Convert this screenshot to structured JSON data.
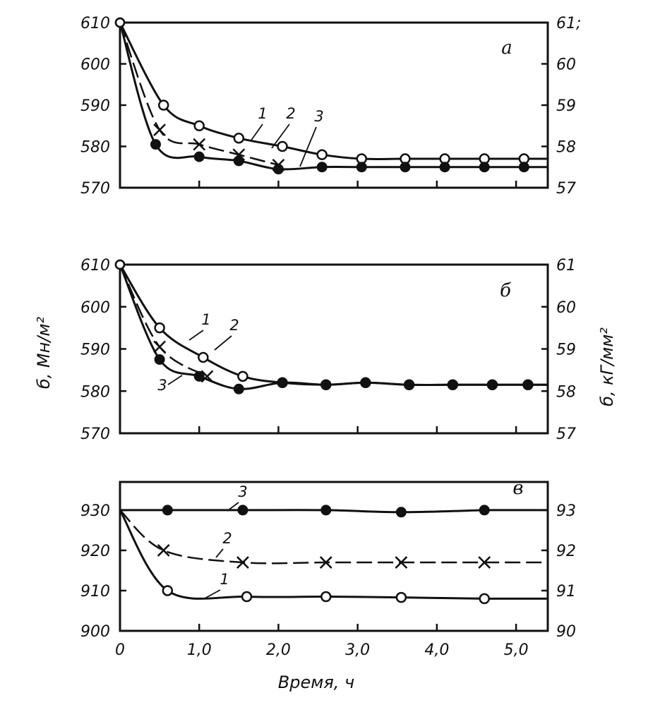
{
  "chart_data": [
    {
      "type": "line",
      "panel_label": "а",
      "x_ticks": [
        "",
        "",
        "",
        "",
        "",
        ""
      ],
      "xlim": [
        0,
        5.4
      ],
      "ylim": [
        570,
        610
      ],
      "y_ticks": [
        570,
        580,
        590,
        600,
        610
      ],
      "y2_ticks": [
        "57",
        "58",
        "59",
        "60",
        "61;"
      ],
      "series": [
        {
          "name": "1",
          "marker": "open-circle",
          "dash": "solid",
          "x": [
            0,
            0.55,
            1.0,
            1.5,
            2.05,
            2.55,
            3.05,
            3.6,
            4.1,
            4.6,
            5.1
          ],
          "y": [
            610,
            590,
            585,
            582,
            580,
            578,
            577,
            577,
            577,
            577,
            577
          ]
        },
        {
          "name": "2",
          "marker": "cross",
          "dash": "dashed",
          "x": [
            0,
            0.5,
            1.0,
            1.5,
            2.0
          ],
          "y": [
            610,
            584,
            580.5,
            578,
            575.5
          ]
        },
        {
          "name": "3",
          "marker": "filled-circle",
          "dash": "solid",
          "x": [
            0,
            0.45,
            1.0,
            1.5,
            2.0,
            2.55,
            3.05,
            3.6,
            4.1,
            4.6,
            5.1
          ],
          "y": [
            610,
            580.5,
            577.5,
            576.5,
            574.5,
            575,
            575,
            575,
            575,
            575,
            575
          ]
        }
      ],
      "curve_labels": [
        "1",
        "2",
        "3"
      ]
    },
    {
      "type": "line",
      "panel_label": "б",
      "x_ticks": [
        "",
        "",
        "",
        "",
        "",
        ""
      ],
      "xlim": [
        0,
        5.4
      ],
      "ylim": [
        570,
        610
      ],
      "y_ticks": [
        570,
        580,
        590,
        600,
        610
      ],
      "y2_ticks": [
        "57",
        "58",
        "59",
        "60",
        "61"
      ],
      "series": [
        {
          "name": "1",
          "marker": "open-circle",
          "dash": "solid",
          "x": [
            0,
            0.5,
            1.05,
            1.55,
            2.05,
            2.6,
            3.1,
            3.65,
            4.2,
            4.7,
            5.15
          ],
          "y": [
            610,
            595,
            588,
            583.5,
            582,
            581.5,
            582,
            581.5,
            581.5,
            581.5,
            581.5
          ]
        },
        {
          "name": "2",
          "marker": "cross",
          "dash": "dashed",
          "x": [
            0,
            0.5,
            1.1
          ],
          "y": [
            610,
            590.5,
            583.5
          ]
        },
        {
          "name": "3",
          "marker": "filled-circle",
          "dash": "solid",
          "x": [
            0,
            0.5,
            1.0,
            1.5,
            2.05,
            2.6,
            3.1,
            3.65,
            4.2,
            4.7,
            5.15
          ],
          "y": [
            610,
            587.5,
            583.5,
            580.5,
            582,
            581.5,
            582,
            581.5,
            581.5,
            581.5,
            581.5
          ]
        }
      ],
      "curve_labels": [
        "1",
        "2",
        "3"
      ],
      "ylabel": "б, Мн/м²",
      "y2label": "б, кГ/мм²"
    },
    {
      "type": "line",
      "panel_label": "в",
      "x_ticks": [
        "0",
        "1,0",
        "2,0",
        "3,0",
        "4,0",
        "5,0"
      ],
      "xlim": [
        0,
        5.4
      ],
      "ylim": [
        900,
        937
      ],
      "y_ticks": [
        900,
        910,
        920,
        930
      ],
      "y2_ticks": [
        "90",
        "91",
        "92",
        "93"
      ],
      "series": [
        {
          "name": "3",
          "marker": "filled-circle",
          "dash": "solid",
          "x": [
            0,
            0.6,
            1.55,
            2.6,
            3.55,
            4.6
          ],
          "y": [
            930,
            930,
            930,
            930,
            929.5,
            930
          ]
        },
        {
          "name": "2",
          "marker": "cross",
          "dash": "dashed",
          "x": [
            0,
            0.55,
            1.55,
            2.6,
            3.55,
            4.6
          ],
          "y": [
            930,
            920,
            917,
            917,
            917,
            917
          ]
        },
        {
          "name": "1",
          "marker": "open-circle",
          "dash": "solid",
          "x": [
            0,
            0.6,
            1.6,
            2.6,
            3.55,
            4.6
          ],
          "y": [
            930,
            910,
            908.5,
            908.5,
            908.3,
            908
          ]
        }
      ],
      "curve_labels": [
        "3",
        "2",
        "1"
      ],
      "xlabel": "Время, ч"
    }
  ]
}
